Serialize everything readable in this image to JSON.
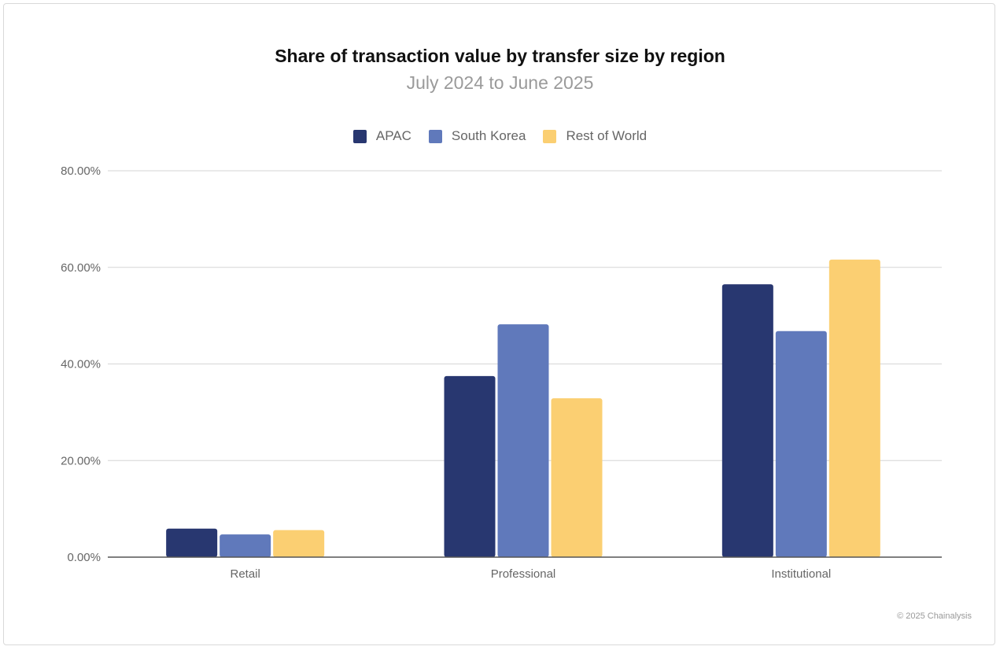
{
  "chart_data": {
    "type": "bar",
    "title": "Share of transaction value by transfer size by region",
    "subtitle": "July 2024 to June 2025",
    "categories": [
      "Retail",
      "Professional",
      "Institutional"
    ],
    "series": [
      {
        "name": "APAC",
        "color": "#283770",
        "values": [
          5.9,
          37.5,
          56.5
        ]
      },
      {
        "name": "South Korea",
        "color": "#6079bb",
        "values": [
          4.7,
          48.2,
          46.8
        ]
      },
      {
        "name": "Rest of World",
        "color": "#fbcf72",
        "values": [
          5.6,
          32.9,
          61.6
        ]
      }
    ],
    "ylim": [
      0,
      80
    ],
    "yticks": [
      "0.00%",
      "20.00%",
      "40.00%",
      "60.00%",
      "80.00%"
    ],
    "ytick_values": [
      0,
      20,
      40,
      60,
      80
    ],
    "grid": true,
    "legend": "top"
  },
  "credit": "© 2025 Chainalysis"
}
